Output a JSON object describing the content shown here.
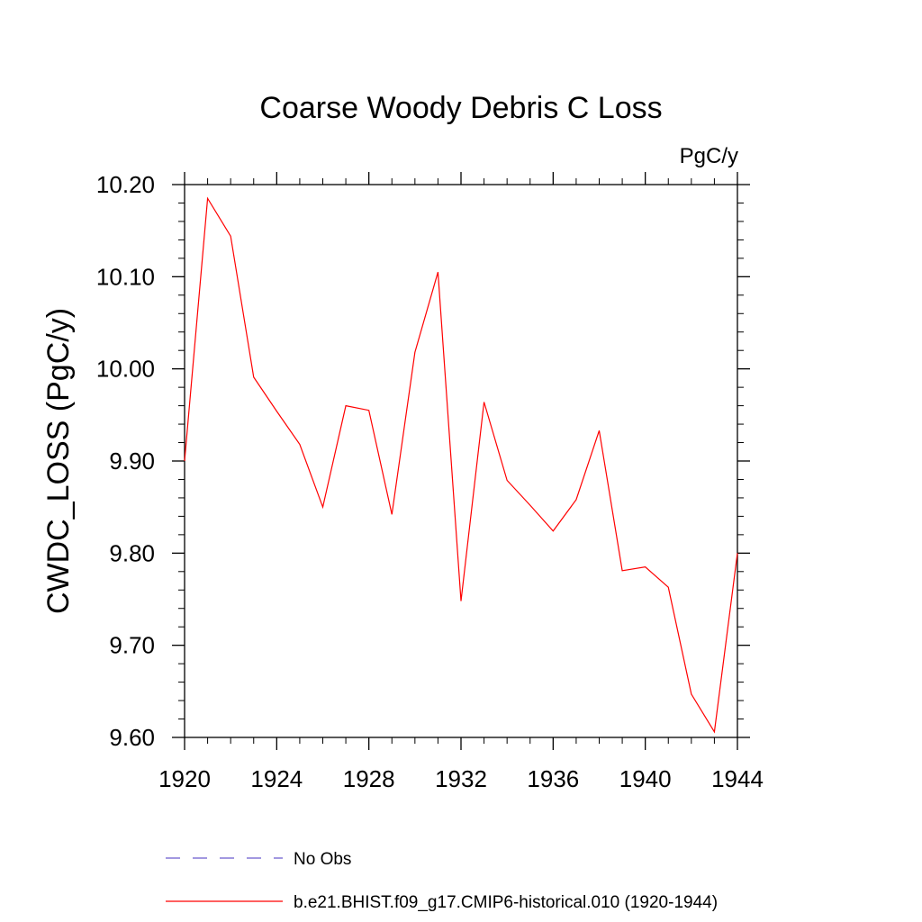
{
  "chart_data": {
    "type": "line",
    "title": "Coarse Woody Debris C Loss",
    "units": "PgC/y",
    "xlabel": "",
    "ylabel": "CWDC_LOSS  (PgC/y)",
    "xlim": [
      1920,
      1944
    ],
    "ylim": [
      9.6,
      10.2
    ],
    "x_ticks": [
      "1920",
      "1924",
      "1928",
      "1932",
      "1936",
      "1940",
      "1944"
    ],
    "y_ticks": [
      "9.60",
      "9.70",
      "9.80",
      "9.90",
      "10.00",
      "10.10",
      "10.20"
    ],
    "grid": false,
    "legend_position": "bottom",
    "series": [
      {
        "name": "b.e21.BHIST.f09_g17.CMIP6-historical.010 (1920-1944)",
        "color": "#ff0000",
        "style": "solid",
        "x": [
          1920,
          1921,
          1922,
          1923,
          1924,
          1925,
          1926,
          1927,
          1928,
          1929,
          1930,
          1931,
          1932,
          1933,
          1934,
          1935,
          1936,
          1937,
          1938,
          1939,
          1940,
          1941,
          1942,
          1943,
          1944
        ],
        "y": [
          9.9,
          10.185,
          10.144,
          9.991,
          9.954,
          9.918,
          9.85,
          9.96,
          9.955,
          9.842,
          10.018,
          10.105,
          9.748,
          9.964,
          9.879,
          9.852,
          9.824,
          9.858,
          9.933,
          9.781,
          9.785,
          9.763,
          9.647,
          9.606,
          9.8
        ]
      }
    ],
    "legend": [
      {
        "label": "No Obs",
        "color": "#6a5acd",
        "style": "dashed"
      },
      {
        "label": "b.e21.BHIST.f09_g17.CMIP6-historical.010 (1920-1944)",
        "color": "#ff0000",
        "style": "solid"
      }
    ]
  }
}
